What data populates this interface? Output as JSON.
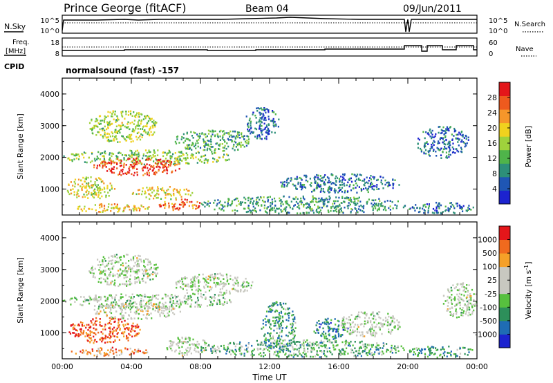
{
  "header": {
    "station": "Prince George (fitACF)",
    "beam": "Beam 04",
    "date": "09/Jun/2011"
  },
  "noise_panel": {
    "left_label": "N.Sky",
    "left_ticks": [
      "10^5",
      "10^0"
    ],
    "right_ticks": [
      "10^5",
      "10^0"
    ],
    "right_label": "N.Search",
    "line_style_right": "dotted"
  },
  "freq_panel": {
    "left_label_1": "Freq.",
    "left_label_2": "[MHz]",
    "left_ticks": [
      "18",
      "8"
    ],
    "right_ticks": [
      "60",
      "0"
    ],
    "right_label": "Nave",
    "line_style_right": "dotted"
  },
  "cpid": {
    "label": "CPID",
    "value": "normalsound (fast) -157"
  },
  "colors": {
    "power": [
      "#1c23cf",
      "#1f56b4",
      "#2d8f79",
      "#4fb44a",
      "#9fd23c",
      "#f0d21e",
      "#f5962a",
      "#ee5a1e",
      "#e4161a"
    ],
    "velocity": [
      "#1c23cf",
      "#1f6cb4",
      "#2d8f5a",
      "#57c03e",
      "#c8c8c0",
      "#c8c8c0",
      "#f5a028",
      "#f06a1e",
      "#e4161a"
    ]
  },
  "chart_data": [
    {
      "type": "heatmap",
      "name": "power",
      "xlabel": "",
      "ylabel": "Slant Range [km]",
      "xlim": [
        0,
        24
      ],
      "ylim": [
        180,
        4500
      ],
      "yticks": [
        "1000",
        "2000",
        "3000",
        "4000"
      ],
      "colorbar": {
        "label": "Power [dB]",
        "ticks": [
          "4",
          "8",
          "12",
          "16",
          "20",
          "24",
          "28"
        ],
        "range": [
          0,
          32
        ]
      },
      "regions": [
        {
          "t": [
            0.0,
            9.8
          ],
          "r": [
            1800,
            2250
          ],
          "level": 0.45
        },
        {
          "t": [
            1.8,
            6.8
          ],
          "r": [
            1450,
            2000
          ],
          "level": 0.88
        },
        {
          "t": [
            6.5,
            11.0
          ],
          "r": [
            2200,
            2900
          ],
          "level": 0.35
        },
        {
          "t": [
            1.5,
            5.5
          ],
          "r": [
            2500,
            3500
          ],
          "level": 0.5
        },
        {
          "t": [
            0.2,
            3.0
          ],
          "r": [
            700,
            1400
          ],
          "level": 0.55
        },
        {
          "t": [
            4.0,
            7.5
          ],
          "r": [
            700,
            1100
          ],
          "level": 0.6
        },
        {
          "t": [
            5.5,
            8.0
          ],
          "r": [
            350,
            700
          ],
          "level": 0.8
        },
        {
          "t": [
            0.5,
            5.0
          ],
          "r": [
            300,
            560
          ],
          "level": 0.65
        },
        {
          "t": [
            8.0,
            19.8
          ],
          "r": [
            250,
            800
          ],
          "level": 0.3
        },
        {
          "t": [
            12.5,
            19.5
          ],
          "r": [
            900,
            1500
          ],
          "level": 0.22
        },
        {
          "t": [
            10.5,
            12.5
          ],
          "r": [
            2600,
            3600
          ],
          "level": 0.2
        },
        {
          "t": [
            20.5,
            23.5
          ],
          "r": [
            2000,
            3000
          ],
          "level": 0.2
        },
        {
          "t": [
            20.0,
            23.8
          ],
          "r": [
            250,
            600
          ],
          "level": 0.22
        }
      ]
    },
    {
      "type": "heatmap",
      "name": "velocity",
      "xlabel": "Time UT",
      "ylabel": "Slant Range [km]",
      "xlim": [
        0,
        24
      ],
      "ylim": [
        180,
        4500
      ],
      "xticks": [
        "00:00",
        "04:00",
        "08:00",
        "12:00",
        "16:00",
        "20:00",
        "00:00"
      ],
      "yticks": [
        "1000",
        "2000",
        "3000",
        "4000"
      ],
      "colorbar": {
        "label": "Velocity [m s^-1]",
        "ticks": [
          "1000",
          "500",
          "100",
          "25",
          "-25",
          "-100",
          "-500",
          "-1000"
        ],
        "range": [
          -1000,
          1000
        ]
      },
      "regions": [
        {
          "t": [
            0.0,
            9.8
          ],
          "r": [
            1800,
            2250
          ],
          "level": 0.45
        },
        {
          "t": [
            0.3,
            4.5
          ],
          "r": [
            700,
            1500
          ],
          "level": 0.85
        },
        {
          "t": [
            1.8,
            6.8
          ],
          "r": [
            1450,
            2000
          ],
          "level": 0.55
        },
        {
          "t": [
            6.5,
            11.0
          ],
          "r": [
            2200,
            2900
          ],
          "level": 0.5
        },
        {
          "t": [
            1.5,
            5.5
          ],
          "r": [
            2500,
            3500
          ],
          "level": 0.5
        },
        {
          "t": [
            0.5,
            5.0
          ],
          "r": [
            300,
            560
          ],
          "level": 0.75
        },
        {
          "t": [
            6.0,
            8.5
          ],
          "r": [
            300,
            900
          ],
          "level": 0.5
        },
        {
          "t": [
            11.5,
            13.5
          ],
          "r": [
            400,
            2000
          ],
          "level": 0.3
        },
        {
          "t": [
            14.5,
            16.5
          ],
          "r": [
            800,
            1500
          ],
          "level": 0.25
        },
        {
          "t": [
            16.0,
            19.5
          ],
          "r": [
            900,
            1700
          ],
          "level": 0.5
        },
        {
          "t": [
            8.0,
            19.8
          ],
          "r": [
            250,
            800
          ],
          "level": 0.35
        },
        {
          "t": [
            20.0,
            23.8
          ],
          "r": [
            250,
            600
          ],
          "level": 0.3
        },
        {
          "t": [
            22.0,
            24.0
          ],
          "r": [
            1500,
            2600
          ],
          "level": 0.5
        }
      ]
    }
  ]
}
